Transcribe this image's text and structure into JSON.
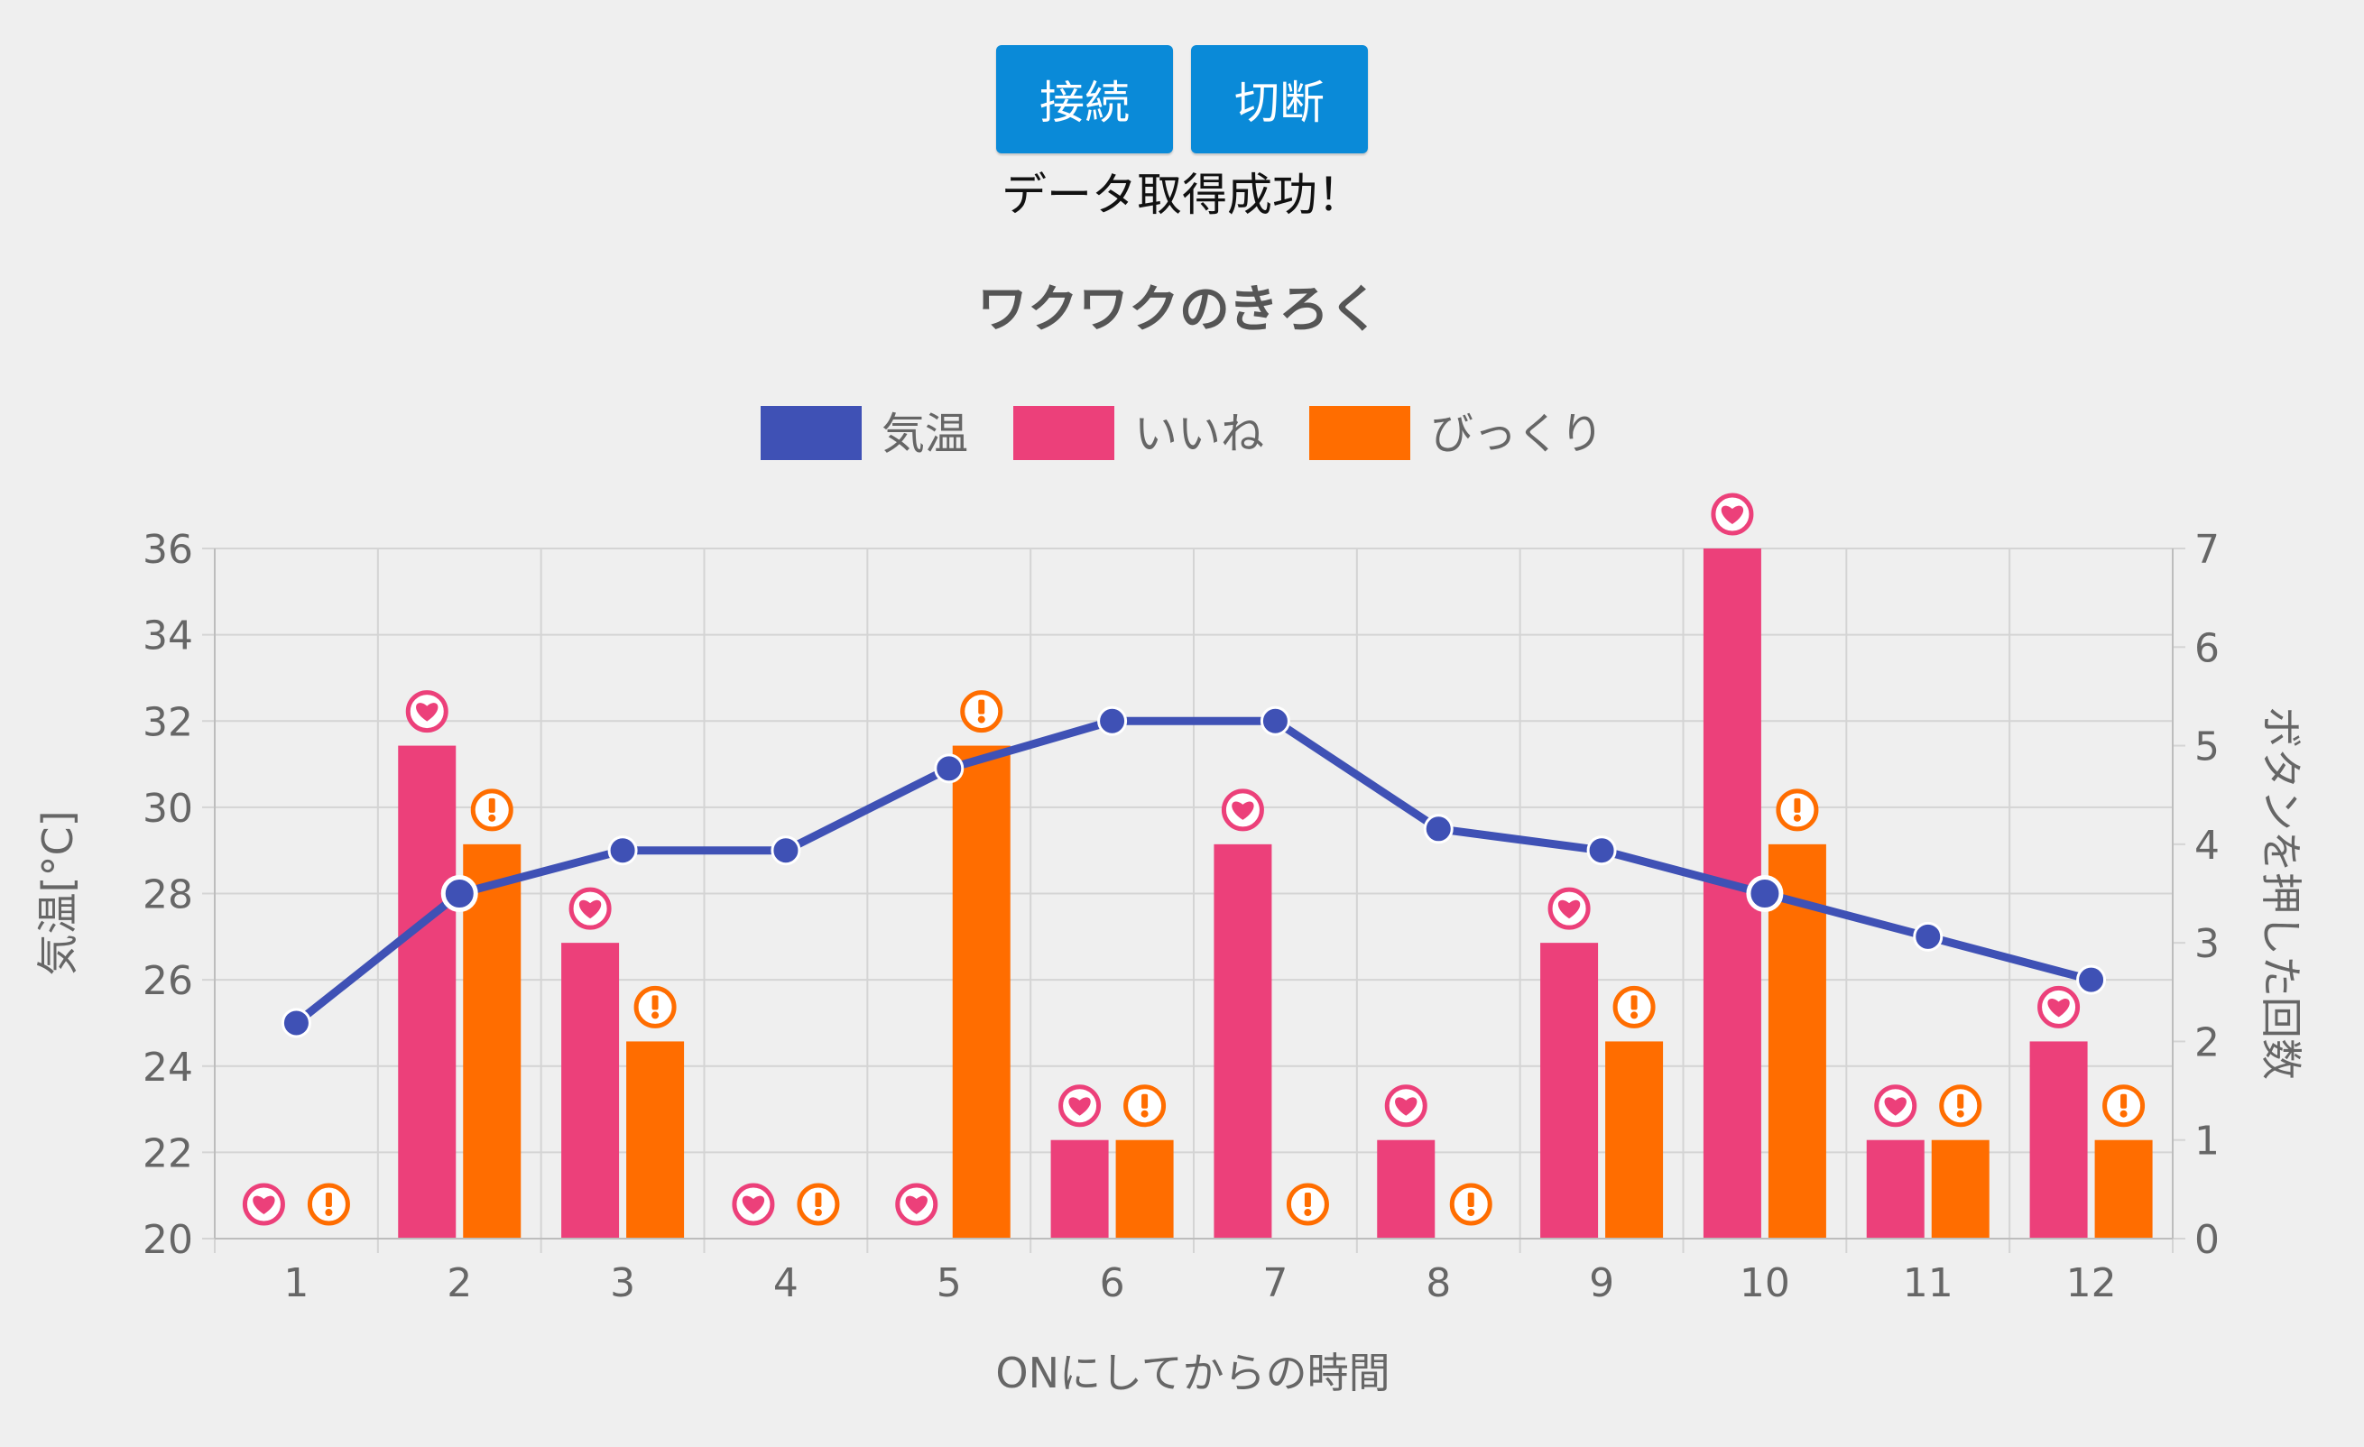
{
  "controls": {
    "connect_label": "接続",
    "disconnect_label": "切断",
    "status_text": "データ取得成功！"
  },
  "colors": {
    "temperature": "#3f51b5",
    "likes": "#ec407a",
    "surprise": "#ff6d00",
    "button": "#0a8ad8",
    "background": "#efefef"
  },
  "chart_data": {
    "type": "bar",
    "title": "ワクワクのきろく",
    "xlabel": "ONにしてからの時間",
    "ylabel": "気温[°C]",
    "y2label": "ボタンを押した回数",
    "categories": [
      "1",
      "2",
      "3",
      "4",
      "5",
      "6",
      "7",
      "8",
      "9",
      "10",
      "11",
      "12"
    ],
    "ylim": [
      20,
      36
    ],
    "y2lim": [
      0,
      7
    ],
    "yticks": [
      "20",
      "22",
      "24",
      "26",
      "28",
      "30",
      "32",
      "34",
      "36"
    ],
    "y2ticks": [
      "0",
      "1",
      "2",
      "3",
      "4",
      "5",
      "6",
      "7"
    ],
    "grid": true,
    "legend_position": "top",
    "series": [
      {
        "name": "気温",
        "type": "line",
        "axis": "left",
        "color": "#3f51b5",
        "values": [
          25,
          28,
          29,
          29,
          30.9,
          32,
          32,
          29.5,
          29,
          28,
          27,
          26
        ]
      },
      {
        "name": "いいね",
        "type": "bar",
        "axis": "right",
        "color": "#ec407a",
        "icon": "heart-icon",
        "values": [
          0,
          5,
          3,
          0,
          0,
          1,
          4,
          1,
          3,
          7,
          1,
          2
        ]
      },
      {
        "name": "びっくり",
        "type": "bar",
        "axis": "right",
        "color": "#ff6d00",
        "icon": "exclamation-icon",
        "values": [
          0,
          4,
          2,
          0,
          5,
          1,
          0,
          0,
          2,
          4,
          1,
          1
        ]
      }
    ]
  }
}
